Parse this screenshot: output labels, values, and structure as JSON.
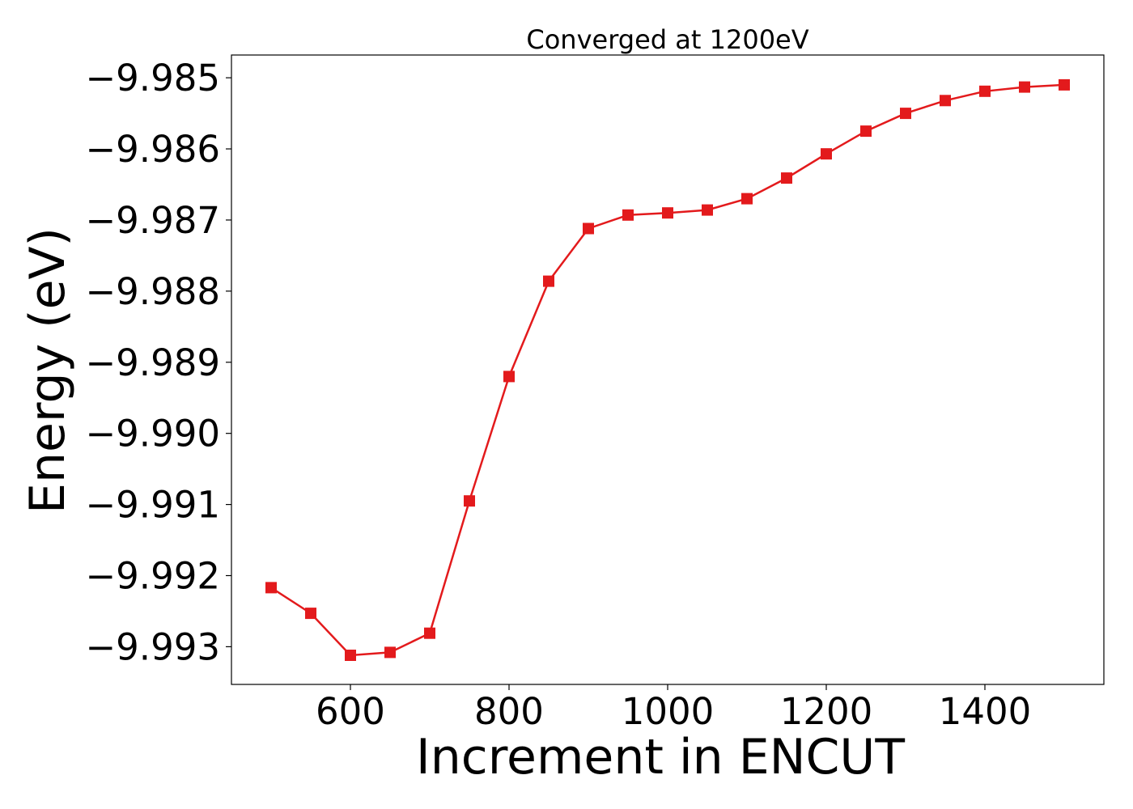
{
  "chart_data": {
    "type": "line",
    "title": "Converged at 1200eV",
    "xlabel": "Increment in ENCUT",
    "ylabel": "Energy (eV)",
    "x": [
      500,
      550,
      600,
      650,
      700,
      750,
      800,
      850,
      900,
      950,
      1000,
      1050,
      1100,
      1150,
      1200,
      1250,
      1300,
      1350,
      1400,
      1450,
      1500
    ],
    "series": [
      {
        "values": [
          -9.99217,
          -9.99253,
          -9.99312,
          -9.99308,
          -9.99281,
          -9.99095,
          -9.9892,
          -9.98786,
          -9.98712,
          -9.98693,
          -9.9869,
          -9.98686,
          -9.9867,
          -9.98641,
          -9.98607,
          -9.98575,
          -9.9855,
          -9.98532,
          -9.98519,
          -9.98513,
          -9.9851
        ],
        "color": "#e31a1c",
        "marker": "square"
      }
    ],
    "xlim": [
      450,
      1550
    ],
    "ylim": [
      -9.99353,
      -9.98468
    ],
    "xticks": [
      600,
      800,
      1000,
      1200,
      1400
    ],
    "xtick_labels": [
      "600",
      "800",
      "1000",
      "1200",
      "1400"
    ],
    "yticks": [
      -9.993,
      -9.992,
      -9.991,
      -9.99,
      -9.989,
      -9.988,
      -9.987,
      -9.986,
      -9.985
    ],
    "ytick_labels": [
      "−9.993",
      "−9.992",
      "−9.991",
      "−9.990",
      "−9.989",
      "−9.988",
      "−9.987",
      "−9.986",
      "−9.985"
    ],
    "grid": false,
    "legend": "none"
  }
}
